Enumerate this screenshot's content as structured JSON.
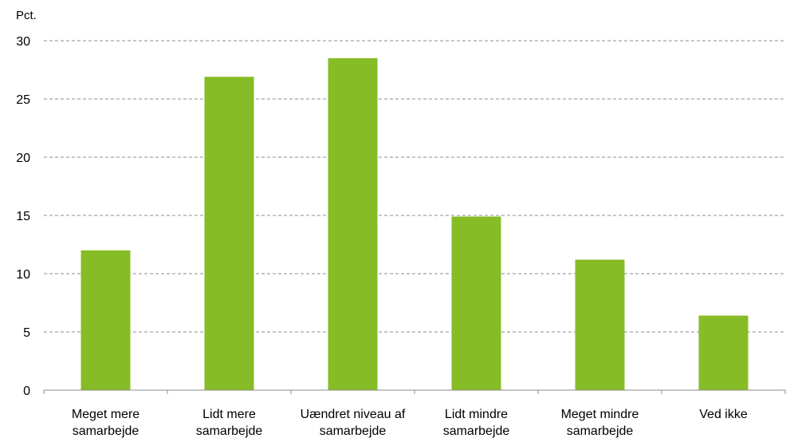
{
  "chart_data": {
    "type": "bar",
    "ylabel": "Pct.",
    "ylim": [
      0,
      30
    ],
    "yticks": [
      0,
      5,
      10,
      15,
      20,
      25,
      30
    ],
    "grid": true,
    "categories": [
      [
        "Meget mere",
        "samarbejde"
      ],
      [
        "Lidt mere",
        "samarbejde"
      ],
      [
        "Uændret niveau af",
        "samarbejde"
      ],
      [
        "Lidt mindre",
        "samarbejde"
      ],
      [
        "Meget mindre",
        "samarbejde"
      ],
      [
        "Ved ikke"
      ]
    ],
    "values": [
      12.0,
      26.9,
      28.5,
      14.9,
      11.2,
      6.4
    ],
    "bar_color": "#86bc25",
    "gridline_color": "#8c8c8c"
  }
}
